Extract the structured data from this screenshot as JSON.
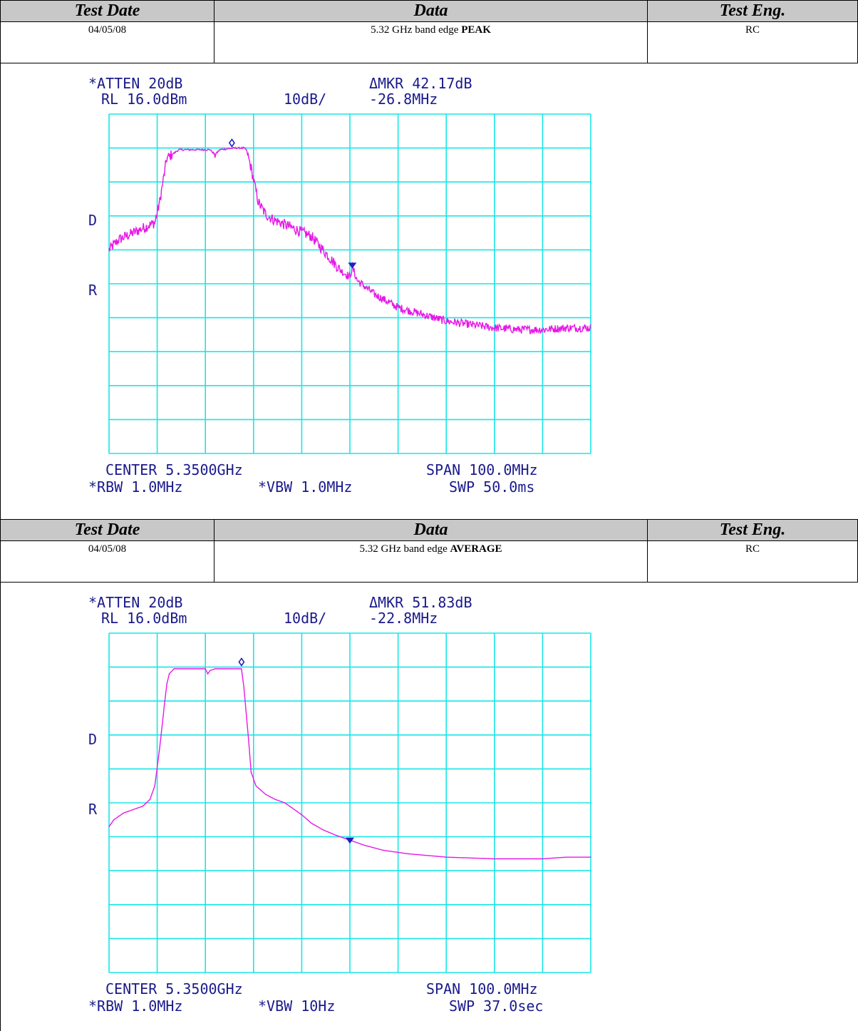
{
  "table_headers": {
    "test_date": "Test Date",
    "data": "Data",
    "test_eng": "Test Eng."
  },
  "colors": {
    "grid": "#19e6e6",
    "trace": "#e619e6",
    "marker": "#2020c0",
    "text": "#1a1a8c"
  },
  "chart_data": [
    {
      "type": "line",
      "test_date": "04/05/08",
      "description_prefix": "5.32 GHz band edge ",
      "description_bold": "PEAK",
      "test_eng": "RC",
      "atten": "*ATTEN 20dB",
      "rl": "RL 16.0dBm",
      "scale": "10dB/",
      "mkr": "ΔMKR 42.17dB",
      "mkr_freq": "-26.8MHz",
      "side_label_1": "D",
      "side_label_2": "R",
      "center": "CENTER 5.3500GHz",
      "span": "SPAN 100.0MHz",
      "rbw": "*RBW 1.0MHz",
      "vbw": "*VBW 1.0MHz",
      "swp": "SWP 50.0ms",
      "xlim": [
        5.3,
        5.4
      ],
      "ylim": [
        -84,
        16
      ],
      "noisy": true,
      "x": [
        5.3,
        5.302,
        5.305,
        5.308,
        5.3095,
        5.3105,
        5.312,
        5.3145,
        5.318,
        5.321,
        5.322,
        5.323,
        5.326,
        5.328,
        5.3285,
        5.3295,
        5.331,
        5.3325,
        5.334,
        5.338,
        5.342,
        5.345,
        5.348,
        5.35,
        5.3505,
        5.3515,
        5.355,
        5.36,
        5.365,
        5.37,
        5.375,
        5.38,
        5.385,
        5.39,
        5.395,
        5.4
      ],
      "y": [
        -24,
        -21,
        -19,
        -17,
        -16,
        -10,
        3,
        5.5,
        5.5,
        5.5,
        4,
        5.5,
        6,
        6,
        5.5,
        0,
        -10,
        -13.5,
        -15,
        -17.5,
        -20,
        -25,
        -30,
        -32,
        -29,
        -33,
        -37,
        -41,
        -43,
        -45,
        -46,
        -47,
        -47.5,
        -47.5,
        -47,
        -47
      ],
      "markers": [
        {
          "symbol": "diamond",
          "x": 5.3255,
          "y": 7.5
        },
        {
          "symbol": "triangle",
          "x": 5.3505,
          "y": -28.5
        }
      ]
    },
    {
      "type": "line",
      "test_date": "04/05/08",
      "description_prefix": "5.32 GHz band edge ",
      "description_bold": "AVERAGE",
      "test_eng": "RC",
      "atten": "*ATTEN 20dB",
      "rl": "RL 16.0dBm",
      "scale": "10dB/",
      "mkr": "ΔMKR 51.83dB",
      "mkr_freq": "-22.8MHz",
      "side_label_1": "D",
      "side_label_2": "R",
      "center": "CENTER 5.3500GHz",
      "span": "SPAN 100.0MHz",
      "rbw": "*RBW 1.0MHz",
      "vbw": "*VBW 10Hz",
      "swp": "SWP 37.0sec",
      "xlim": [
        5.3,
        5.4
      ],
      "ylim": [
        -84,
        16
      ],
      "noisy": false,
      "x": [
        5.3,
        5.301,
        5.303,
        5.305,
        5.307,
        5.3085,
        5.3095,
        5.3105,
        5.3115,
        5.312,
        5.3125,
        5.3135,
        5.32,
        5.3205,
        5.321,
        5.322,
        5.327,
        5.3275,
        5.328,
        5.329,
        5.3295,
        5.3305,
        5.3325,
        5.3345,
        5.3365,
        5.338,
        5.34,
        5.342,
        5.3445,
        5.347,
        5.35,
        5.353,
        5.357,
        5.362,
        5.37,
        5.38,
        5.39,
        5.395,
        5.4
      ],
      "y": [
        -41,
        -39,
        -37,
        -36,
        -35,
        -33,
        -29,
        -18,
        -5,
        1,
        4,
        5.5,
        5.5,
        4,
        5,
        5.5,
        5.5,
        5.5,
        0,
        -16,
        -25,
        -29,
        -31.5,
        -33,
        -34,
        -35.5,
        -37.5,
        -40,
        -42,
        -43.5,
        -45,
        -46.5,
        -48,
        -49,
        -50,
        -50.5,
        -50.5,
        -50,
        -50
      ],
      "markers": [
        {
          "symbol": "diamond",
          "x": 5.3275,
          "y": 7.5
        },
        {
          "symbol": "triangle",
          "x": 5.35,
          "y": -45
        }
      ]
    }
  ]
}
